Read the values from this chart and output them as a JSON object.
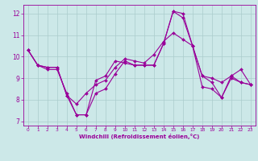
{
  "background_color": "#cce8e8",
  "grid_color": "#aacccc",
  "line_color": "#990099",
  "xlabel": "Windchill (Refroidissement éolien,°C)",
  "ylim": [
    6.8,
    12.4
  ],
  "xlim": [
    -0.5,
    23.5
  ],
  "yticks": [
    7,
    8,
    9,
    10,
    11,
    12
  ],
  "xticks": [
    0,
    1,
    2,
    3,
    4,
    5,
    6,
    7,
    8,
    9,
    10,
    11,
    12,
    13,
    14,
    15,
    16,
    17,
    18,
    19,
    20,
    21,
    22,
    23
  ],
  "series1_x": [
    0,
    1,
    2,
    3,
    4,
    5,
    6,
    7,
    8,
    9,
    10,
    11,
    12,
    13,
    14,
    15,
    16,
    17,
    18,
    19,
    20,
    21,
    22,
    23
  ],
  "series1_y": [
    10.3,
    9.6,
    9.4,
    9.4,
    8.3,
    7.3,
    7.3,
    8.9,
    9.1,
    9.8,
    9.7,
    9.6,
    9.6,
    9.6,
    10.6,
    12.1,
    11.8,
    10.5,
    9.1,
    8.8,
    8.1,
    9.1,
    8.8,
    8.7
  ],
  "series2_x": [
    0,
    1,
    2,
    3,
    4,
    5,
    6,
    7,
    8,
    9,
    10,
    11,
    12,
    13,
    14,
    15,
    16,
    17,
    18,
    19,
    20,
    21,
    22,
    23
  ],
  "series2_y": [
    10.3,
    9.6,
    9.5,
    9.5,
    8.2,
    7.3,
    7.3,
    8.3,
    8.5,
    9.2,
    9.8,
    9.6,
    9.6,
    9.6,
    10.6,
    12.1,
    12.0,
    10.5,
    8.6,
    8.5,
    8.1,
    9.0,
    8.8,
    8.7
  ],
  "series3_x": [
    0,
    1,
    2,
    3,
    4,
    5,
    6,
    7,
    8,
    9,
    10,
    11,
    12,
    13,
    14,
    15,
    16,
    17,
    18,
    19,
    20,
    21,
    22,
    23
  ],
  "series3_y": [
    10.3,
    9.6,
    9.5,
    9.5,
    8.2,
    7.8,
    8.3,
    8.7,
    8.9,
    9.5,
    9.9,
    9.8,
    9.7,
    10.1,
    10.7,
    11.1,
    10.8,
    10.5,
    9.1,
    9.0,
    8.8,
    9.1,
    9.4,
    8.7
  ],
  "marker": "D",
  "markersize": 2.0,
  "linewidth": 0.8
}
